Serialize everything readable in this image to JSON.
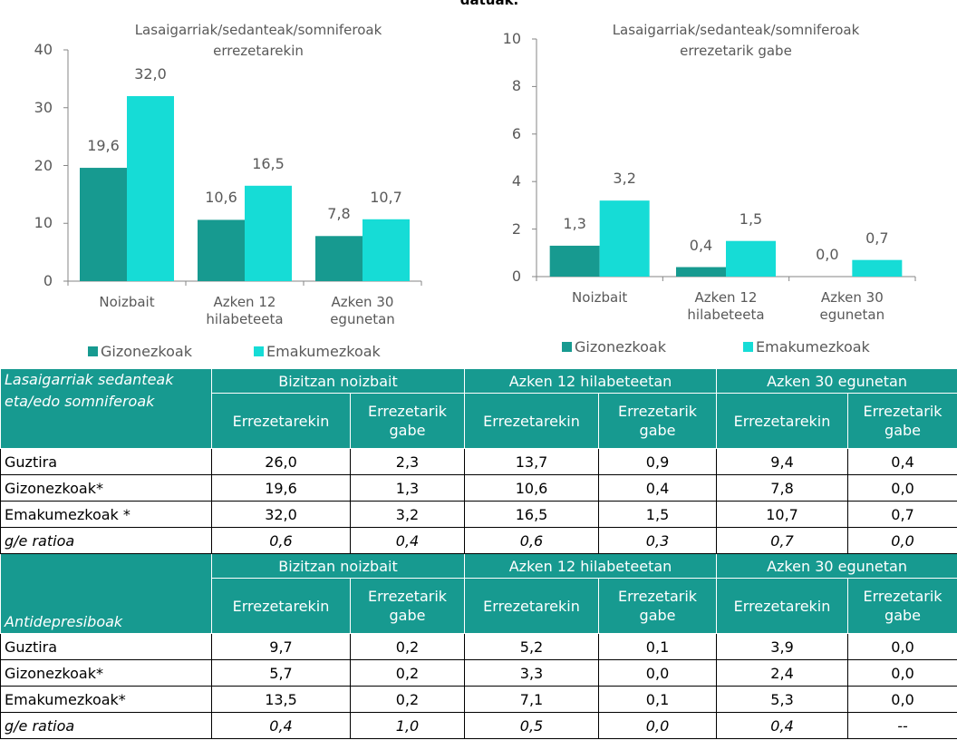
{
  "header": {
    "title": "datuak."
  },
  "chart_data": [
    {
      "type": "bar",
      "title": "Lasaigarriak/sedanteak/somniferoak errezetarekin",
      "categories": [
        "Noizbait",
        "Azken 12 hilabeteeta",
        "Azken 30 egunetan"
      ],
      "series": [
        {
          "name": "Gizonezkoak",
          "color": "#179a90",
          "values": [
            19.6,
            10.6,
            7.8
          ],
          "value_labels": [
            "19,6",
            "10,6",
            "7,8"
          ]
        },
        {
          "name": "Emakumezkoak",
          "color": "#16dcd6",
          "values": [
            32.0,
            16.5,
            10.7
          ],
          "value_labels": [
            "32,0",
            "16,5",
            "10,7"
          ]
        }
      ],
      "ylim": [
        0,
        40
      ],
      "yticks": [
        0,
        10,
        20,
        30,
        40
      ],
      "legend": "bottom"
    },
    {
      "type": "bar",
      "title": "Lasaigarriak/sedanteak/somniferoak errezetarik gabe",
      "categories": [
        "Noizbait",
        "Azken 12 hilabeteeta",
        "Azken 30 egunetan"
      ],
      "series": [
        {
          "name": "Gizonezkoak",
          "color": "#179a90",
          "values": [
            1.3,
            0.4,
            0.0
          ],
          "value_labels": [
            "1,3",
            "0,4",
            "0,0"
          ]
        },
        {
          "name": "Emakumezkoak",
          "color": "#16dcd6",
          "values": [
            3.2,
            1.5,
            0.7
          ],
          "value_labels": [
            "3,2",
            "1,5",
            "0,7"
          ]
        }
      ],
      "ylim": [
        0,
        10
      ],
      "yticks": [
        0,
        2,
        4,
        6,
        8,
        10
      ],
      "legend": "bottom"
    }
  ],
  "table": {
    "sections": [
      {
        "label": "Lasaigarriak sedanteak eta/edo somniferoak",
        "groups": [
          "Bizitzan noizbait",
          "Azken 12 hilabeteetan",
          "Azken 30 egunetan"
        ],
        "subheaders": [
          "Errezetarekin",
          "Errezetarik gabe",
          "Errezetarekin",
          "Errezetarik gabe",
          "Errezetarekin",
          "Errezetarik gabe"
        ],
        "rows": [
          [
            "Guztira",
            "26,0",
            "2,3",
            "13,7",
            "0,9",
            "9,4",
            "0,4"
          ],
          [
            "Gizonezkoak*",
            "19,6",
            "1,3",
            "10,6",
            "0,4",
            "7,8",
            "0,0"
          ],
          [
            "Emakumezkoak *",
            "32,0",
            "3,2",
            "16,5",
            "1,5",
            "10,7",
            "0,7"
          ],
          [
            "g/e ratioa",
            "0,6",
            "0,4",
            "0,6",
            "0,3",
            "0,7",
            "0,0"
          ]
        ]
      },
      {
        "label": "Antidepresiboak",
        "groups": [
          "Bizitzan noizbait",
          "Azken 12 hilabeteetan",
          "Azken 30 egunetan"
        ],
        "subheaders": [
          "Errezetarekin",
          "Errezetarik gabe",
          "Errezetarekin",
          "Errezetarik gabe",
          "Errezetarekin",
          "Errezetarik gabe"
        ],
        "rows": [
          [
            "Guztira",
            "9,7",
            "0,2",
            "5,2",
            "0,1",
            "3,9",
            "0,0"
          ],
          [
            "Gizonezkoak*",
            "5,7",
            "0,2",
            "3,3",
            "0,0",
            "2,4",
            "0,0"
          ],
          [
            "Emakumezkoak*",
            "13,5",
            "0,2",
            "7,1",
            "0,1",
            "5,3",
            "0,0"
          ],
          [
            "g/e ratioa",
            "0,4",
            "1,0",
            "0,5",
            "0,0",
            "0,4",
            "--"
          ]
        ]
      }
    ]
  }
}
